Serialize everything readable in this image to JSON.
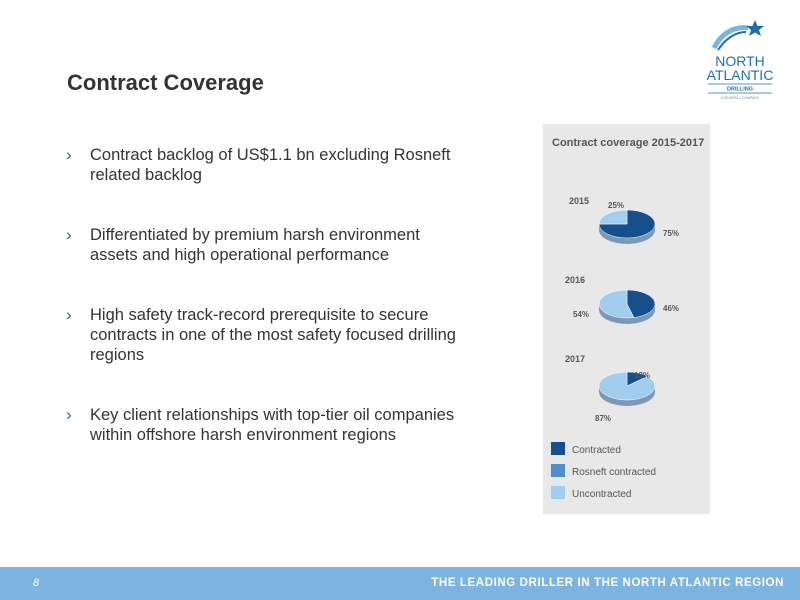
{
  "page": {
    "title": "Contract Coverage",
    "page_number": "8",
    "tagline": "THE LEADING DRILLER IN THE NORTH ATLANTIC REGION"
  },
  "logo": {
    "line1": "NORTH",
    "line2": "ATLANTIC",
    "line3": "DRILLING",
    "small": "A SEADRILL COMPANY",
    "star_color": "#1f6fae"
  },
  "bullets": [
    "Contract backlog of US$1.1 bn excluding Rosneft related backlog",
    "Differentiated by premium harsh environment assets and high operational performance",
    "High safety track-record prerequisite to secure contracts in one of the most safety focused drilling regions",
    "Key client relationships with top-tier oil companies within offshore harsh environment regions"
  ],
  "bullet_marker": "›",
  "chart_data": {
    "type": "pie",
    "title": "Contract coverage 2015-2017",
    "series_labels": [
      "Contracted",
      "Rosneft contracted",
      "Uncontracted"
    ],
    "colors": {
      "Contracted": "#15508c",
      "Rosneft contracted": "#4f8fce",
      "Uncontracted": "#a3cdef"
    },
    "pies": [
      {
        "year": "2015",
        "contracted": 75,
        "uncontracted": 25,
        "contracted_label": "75%",
        "uncontracted_label": "25%"
      },
      {
        "year": "2016",
        "contracted": 46,
        "uncontracted": 54,
        "contracted_label": "46%",
        "uncontracted_label": "54%"
      },
      {
        "year": "2017",
        "contracted": 13,
        "uncontracted": 87,
        "contracted_label": "13%",
        "uncontracted_label": "87%"
      }
    ]
  }
}
